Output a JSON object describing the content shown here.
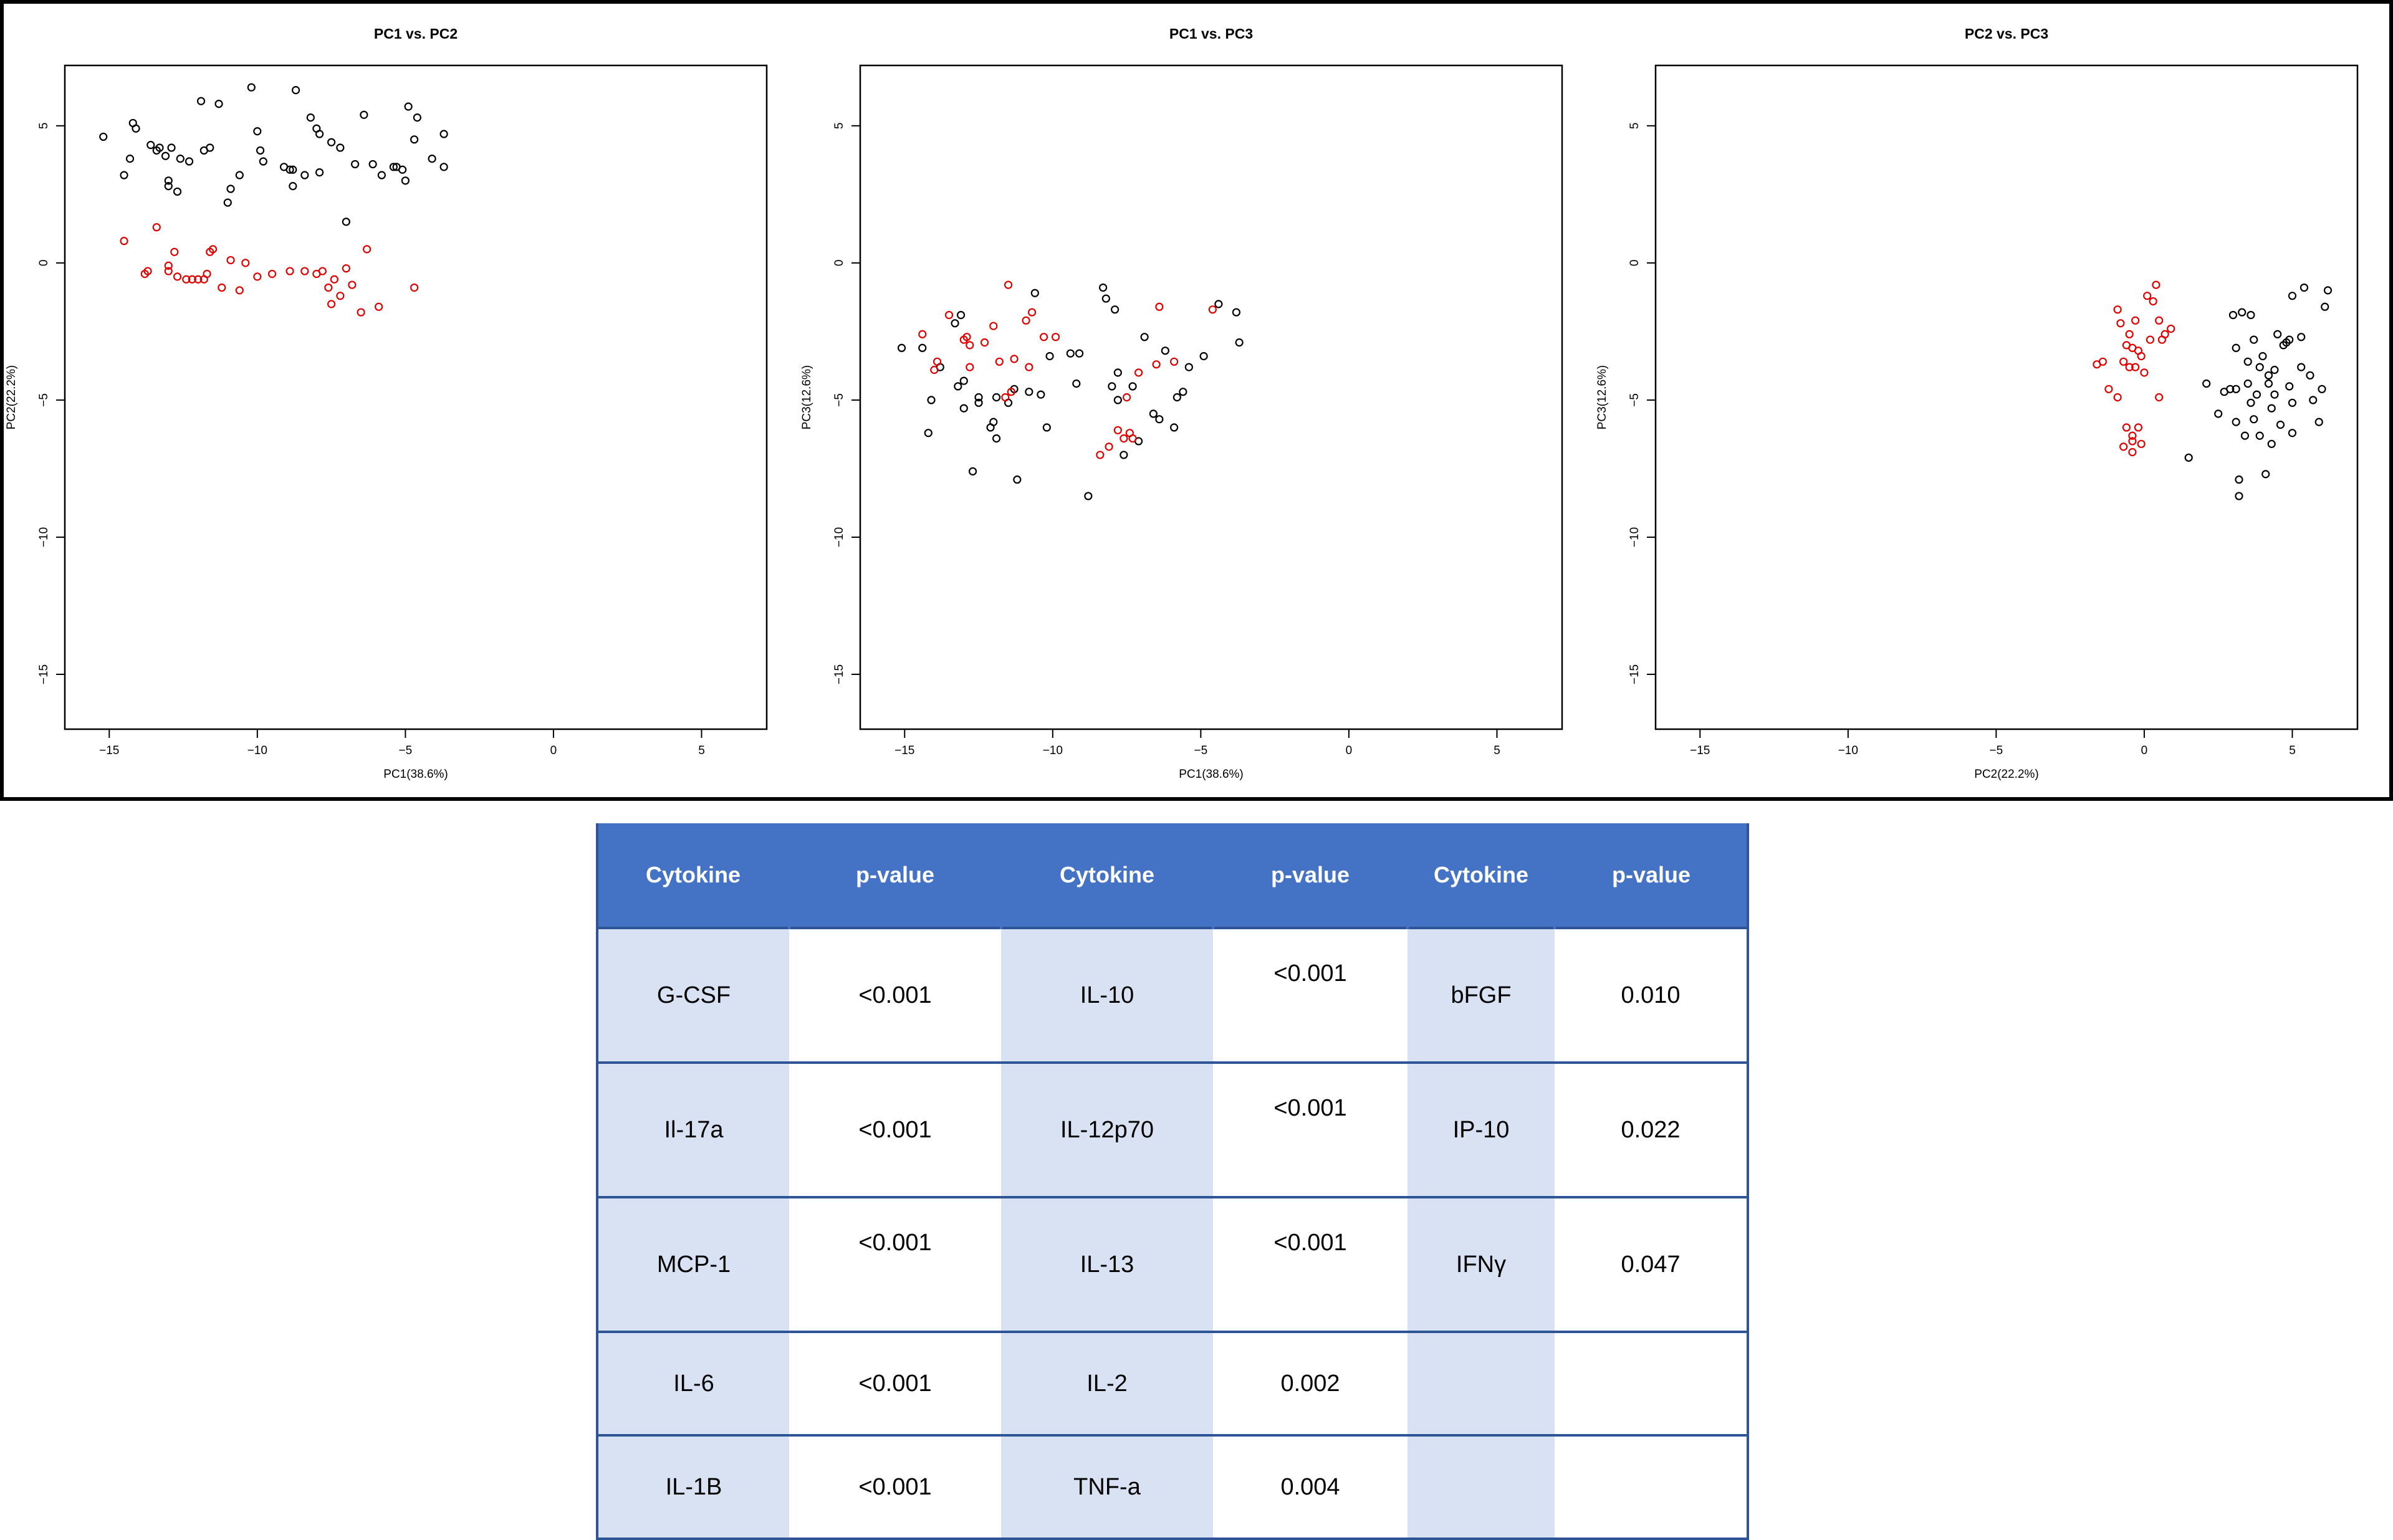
{
  "chart_data": [
    {
      "type": "scatter",
      "title": "PC1 vs. PC2",
      "xlabel": "PC1(38.6%)",
      "ylabel": "PC2(22.2%)",
      "xlim": [
        -16.5,
        7.2
      ],
      "ylim": [
        -17,
        7.2
      ],
      "xticks": [
        -15,
        -10,
        -5,
        0,
        5
      ],
      "yticks": [
        5,
        0,
        -5,
        -10,
        -15
      ],
      "grid": false,
      "series": [
        {
          "color": "#000000",
          "points": [
            [
              -15.2,
              4.6
            ],
            [
              -14.5,
              3.2
            ],
            [
              -14.3,
              3.8
            ],
            [
              -14.2,
              5.1
            ],
            [
              -14.1,
              4.9
            ],
            [
              -13.6,
              4.3
            ],
            [
              -13.4,
              4.1
            ],
            [
              -13.3,
              4.2
            ],
            [
              -13.1,
              3.9
            ],
            [
              -13.0,
              3.0
            ],
            [
              -13.0,
              2.8
            ],
            [
              -12.9,
              4.2
            ],
            [
              -12.7,
              2.6
            ],
            [
              -12.6,
              3.8
            ],
            [
              -12.3,
              3.7
            ],
            [
              -11.9,
              5.9
            ],
            [
              -11.8,
              4.1
            ],
            [
              -11.6,
              4.2
            ],
            [
              -11.3,
              5.8
            ],
            [
              -11.0,
              2.2
            ],
            [
              -10.9,
              2.7
            ],
            [
              -10.6,
              3.2
            ],
            [
              -10.2,
              6.4
            ],
            [
              -10.0,
              4.8
            ],
            [
              -9.9,
              4.1
            ],
            [
              -9.8,
              3.7
            ],
            [
              -9.1,
              3.5
            ],
            [
              -8.9,
              3.4
            ],
            [
              -8.8,
              2.8
            ],
            [
              -8.8,
              3.4
            ],
            [
              -8.7,
              6.3
            ],
            [
              -8.4,
              3.2
            ],
            [
              -8.2,
              5.3
            ],
            [
              -8.0,
              4.9
            ],
            [
              -7.9,
              4.7
            ],
            [
              -7.9,
              3.3
            ],
            [
              -7.5,
              4.4
            ],
            [
              -7.2,
              4.2
            ],
            [
              -7.0,
              1.5
            ],
            [
              -6.7,
              3.6
            ],
            [
              -6.4,
              5.4
            ],
            [
              -6.1,
              3.6
            ],
            [
              -5.8,
              3.2
            ],
            [
              -5.4,
              3.5
            ],
            [
              -5.3,
              3.5
            ],
            [
              -5.1,
              3.4
            ],
            [
              -5.0,
              3.0
            ],
            [
              -4.9,
              5.7
            ],
            [
              -4.7,
              4.5
            ],
            [
              -4.6,
              5.3
            ],
            [
              -4.1,
              3.8
            ],
            [
              -3.7,
              4.7
            ],
            [
              -3.7,
              3.5
            ]
          ]
        },
        {
          "color": "#e00000",
          "points": [
            [
              -14.5,
              0.8
            ],
            [
              -13.8,
              -0.4
            ],
            [
              -13.7,
              -0.3
            ],
            [
              -13.4,
              1.3
            ],
            [
              -13.0,
              -0.3
            ],
            [
              -13.0,
              -0.1
            ],
            [
              -12.8,
              0.4
            ],
            [
              -12.7,
              -0.5
            ],
            [
              -12.4,
              -0.6
            ],
            [
              -12.2,
              -0.6
            ],
            [
              -12.0,
              -0.6
            ],
            [
              -11.8,
              -0.6
            ],
            [
              -11.7,
              -0.4
            ],
            [
              -11.6,
              0.4
            ],
            [
              -11.5,
              0.5
            ],
            [
              -11.2,
              -0.9
            ],
            [
              -10.9,
              0.1
            ],
            [
              -10.6,
              -1.0
            ],
            [
              -10.4,
              0.0
            ],
            [
              -10.0,
              -0.5
            ],
            [
              -9.5,
              -0.4
            ],
            [
              -8.9,
              -0.3
            ],
            [
              -8.4,
              -0.3
            ],
            [
              -8.0,
              -0.4
            ],
            [
              -7.8,
              -0.3
            ],
            [
              -7.6,
              -0.9
            ],
            [
              -7.5,
              -1.5
            ],
            [
              -7.4,
              -0.6
            ],
            [
              -7.2,
              -1.2
            ],
            [
              -7.0,
              -0.2
            ],
            [
              -6.8,
              -0.8
            ],
            [
              -6.5,
              -1.8
            ],
            [
              -6.3,
              0.5
            ],
            [
              -5.9,
              -1.6
            ],
            [
              -4.7,
              -0.9
            ]
          ]
        }
      ]
    },
    {
      "type": "scatter",
      "title": "PC1 vs. PC3",
      "xlabel": "PC1(38.6%)",
      "ylabel": "PC3(12.6%)",
      "xlim": [
        -16.5,
        7.2
      ],
      "ylim": [
        -17,
        7.2
      ],
      "xticks": [
        -15,
        -10,
        -5,
        0,
        5
      ],
      "yticks": [
        5,
        0,
        -5,
        -10,
        -15
      ],
      "grid": false,
      "series": [
        {
          "color": "#000000",
          "points": [
            [
              -15.1,
              -3.1
            ],
            [
              -14.4,
              -3.1
            ],
            [
              -14.2,
              -6.2
            ],
            [
              -14.1,
              -5.0
            ],
            [
              -13.8,
              -3.8
            ],
            [
              -13.3,
              -2.2
            ],
            [
              -13.2,
              -4.5
            ],
            [
              -13.1,
              -1.9
            ],
            [
              -13.0,
              -4.3
            ],
            [
              -13.0,
              -5.3
            ],
            [
              -12.7,
              -7.6
            ],
            [
              -12.5,
              -5.1
            ],
            [
              -12.5,
              -4.9
            ],
            [
              -12.1,
              -6.0
            ],
            [
              -11.9,
              -4.9
            ],
            [
              -11.9,
              -6.4
            ],
            [
              -11.5,
              -5.1
            ],
            [
              -11.3,
              -4.6
            ],
            [
              -11.2,
              -7.9
            ],
            [
              -10.8,
              -4.7
            ],
            [
              -10.6,
              -1.1
            ],
            [
              -10.4,
              -4.8
            ],
            [
              -10.2,
              -6.0
            ],
            [
              -10.1,
              -3.4
            ],
            [
              -9.4,
              -3.3
            ],
            [
              -9.2,
              -4.4
            ],
            [
              -9.1,
              -3.3
            ],
            [
              -8.8,
              -8.5
            ],
            [
              -8.3,
              -0.9
            ],
            [
              -8.2,
              -1.3
            ],
            [
              -8.0,
              -4.5
            ],
            [
              -7.9,
              -1.7
            ],
            [
              -7.8,
              -4.0
            ],
            [
              -7.6,
              -7.0
            ],
            [
              -7.3,
              -4.5
            ],
            [
              -7.1,
              -6.5
            ],
            [
              -6.9,
              -2.7
            ],
            [
              -6.6,
              -5.5
            ],
            [
              -6.4,
              -5.7
            ],
            [
              -6.2,
              -3.2
            ],
            [
              -5.9,
              -6.0
            ],
            [
              -5.8,
              -4.9
            ],
            [
              -5.6,
              -4.7
            ],
            [
              -5.4,
              -3.8
            ],
            [
              -4.9,
              -3.4
            ],
            [
              -4.4,
              -1.5
            ],
            [
              -3.8,
              -1.8
            ],
            [
              -3.7,
              -2.9
            ],
            [
              -7.8,
              -5.0
            ],
            [
              -12.0,
              -5.8
            ]
          ]
        },
        {
          "color": "#e00000",
          "points": [
            [
              -14.4,
              -2.6
            ],
            [
              -14.0,
              -3.9
            ],
            [
              -13.9,
              -3.6
            ],
            [
              -13.5,
              -1.9
            ],
            [
              -13.0,
              -2.8
            ],
            [
              -12.9,
              -2.7
            ],
            [
              -12.8,
              -3.0
            ],
            [
              -12.8,
              -3.8
            ],
            [
              -12.3,
              -2.9
            ],
            [
              -12.0,
              -2.3
            ],
            [
              -11.8,
              -3.6
            ],
            [
              -11.6,
              -4.9
            ],
            [
              -11.5,
              -0.8
            ],
            [
              -11.4,
              -4.7
            ],
            [
              -11.3,
              -3.5
            ],
            [
              -10.9,
              -2.1
            ],
            [
              -10.8,
              -3.8
            ],
            [
              -10.7,
              -1.8
            ],
            [
              -10.3,
              -2.7
            ],
            [
              -9.9,
              -2.7
            ],
            [
              -8.4,
              -7.0
            ],
            [
              -8.1,
              -6.7
            ],
            [
              -7.8,
              -6.1
            ],
            [
              -7.6,
              -6.4
            ],
            [
              -7.4,
              -6.2
            ],
            [
              -7.3,
              -6.4
            ],
            [
              -7.1,
              -4.0
            ],
            [
              -6.5,
              -3.7
            ],
            [
              -6.4,
              -1.6
            ],
            [
              -5.9,
              -3.6
            ],
            [
              -4.6,
              -1.7
            ],
            [
              -7.5,
              -4.9
            ]
          ]
        }
      ]
    },
    {
      "type": "scatter",
      "title": "PC2 vs. PC3",
      "xlabel": "PC2(22.2%)",
      "ylabel": "PC3(12.6%)",
      "xlim": [
        -16.5,
        7.2
      ],
      "ylim": [
        -17,
        7.2
      ],
      "xticks": [
        -15,
        -10,
        -5,
        0,
        5
      ],
      "yticks": [
        5,
        0,
        -5,
        -10,
        -15
      ],
      "grid": false,
      "series": [
        {
          "color": "#000000",
          "points": [
            [
              1.5,
              -7.1
            ],
            [
              2.1,
              -4.4
            ],
            [
              2.5,
              -5.5
            ],
            [
              2.7,
              -4.7
            ],
            [
              2.9,
              -4.6
            ],
            [
              3.0,
              -1.9
            ],
            [
              3.1,
              -3.1
            ],
            [
              3.1,
              -5.8
            ],
            [
              3.2,
              -8.5
            ],
            [
              3.2,
              -7.9
            ],
            [
              3.3,
              -1.8
            ],
            [
              3.4,
              -6.3
            ],
            [
              3.5,
              -4.4
            ],
            [
              3.5,
              -3.6
            ],
            [
              3.6,
              -5.1
            ],
            [
              3.6,
              -1.9
            ],
            [
              3.7,
              -2.8
            ],
            [
              3.7,
              -5.7
            ],
            [
              3.8,
              -4.8
            ],
            [
              3.9,
              -6.3
            ],
            [
              3.9,
              -3.8
            ],
            [
              4.0,
              -3.4
            ],
            [
              4.1,
              -7.7
            ],
            [
              4.2,
              -4.1
            ],
            [
              4.2,
              -4.4
            ],
            [
              4.3,
              -5.3
            ],
            [
              4.3,
              -6.6
            ],
            [
              4.4,
              -4.8
            ],
            [
              4.4,
              -3.9
            ],
            [
              4.5,
              -2.6
            ],
            [
              4.7,
              -3.0
            ],
            [
              4.8,
              -2.9
            ],
            [
              4.9,
              -2.8
            ],
            [
              4.9,
              -4.5
            ],
            [
              5.0,
              -6.2
            ],
            [
              5.0,
              -5.1
            ],
            [
              5.0,
              -1.2
            ],
            [
              5.3,
              -3.8
            ],
            [
              5.3,
              -2.7
            ],
            [
              5.4,
              -0.9
            ],
            [
              5.6,
              -4.1
            ],
            [
              5.7,
              -5.0
            ],
            [
              5.9,
              -5.8
            ],
            [
              6.1,
              -1.6
            ],
            [
              6.2,
              -1.0
            ],
            [
              6.0,
              -4.6
            ],
            [
              4.6,
              -5.9
            ],
            [
              3.1,
              -4.6
            ]
          ]
        },
        {
          "color": "#e00000",
          "points": [
            [
              -1.6,
              -3.7
            ],
            [
              -1.4,
              -3.6
            ],
            [
              -1.2,
              -4.6
            ],
            [
              -0.9,
              -4.9
            ],
            [
              -0.9,
              -1.7
            ],
            [
              -0.8,
              -2.2
            ],
            [
              -0.7,
              -3.6
            ],
            [
              -0.7,
              -6.7
            ],
            [
              -0.6,
              -3.0
            ],
            [
              -0.6,
              -6.0
            ],
            [
              -0.5,
              -3.8
            ],
            [
              -0.5,
              -2.6
            ],
            [
              -0.4,
              -3.1
            ],
            [
              -0.4,
              -6.5
            ],
            [
              -0.4,
              -6.9
            ],
            [
              -0.3,
              -3.8
            ],
            [
              -0.3,
              -2.1
            ],
            [
              -0.2,
              -3.2
            ],
            [
              -0.2,
              -6.0
            ],
            [
              -0.1,
              -6.6
            ],
            [
              -0.1,
              -3.4
            ],
            [
              0.0,
              -4.0
            ],
            [
              0.2,
              -2.8
            ],
            [
              0.3,
              -1.4
            ],
            [
              0.4,
              -0.8
            ],
            [
              0.5,
              -2.1
            ],
            [
              0.5,
              -4.9
            ],
            [
              0.6,
              -2.8
            ],
            [
              0.7,
              -2.6
            ],
            [
              0.9,
              -2.4
            ],
            [
              -0.4,
              -6.3
            ],
            [
              0.1,
              -1.2
            ]
          ]
        }
      ]
    }
  ],
  "table": {
    "headers": [
      "Cytokine",
      "p-value",
      "Cytokine",
      "p-value",
      "Cytokine",
      "p-value"
    ],
    "rows": [
      [
        "G-CSF",
        "<0.001",
        "IL-10",
        "<0.001",
        "bFGF",
        "0.010"
      ],
      [
        "Il-17a",
        "<0.001",
        "IL-12p70",
        "<0.001",
        "IP-10",
        "0.022"
      ],
      [
        "MCP-1",
        "<0.001",
        "IL-13",
        "<0.001",
        "IFNγ",
        "0.047"
      ],
      [
        "IL-6",
        "<0.001",
        "IL-2",
        "0.002",
        "",
        ""
      ],
      [
        "IL-1B",
        "<0.001",
        "TNF-a",
        "0.004",
        "",
        ""
      ]
    ]
  }
}
